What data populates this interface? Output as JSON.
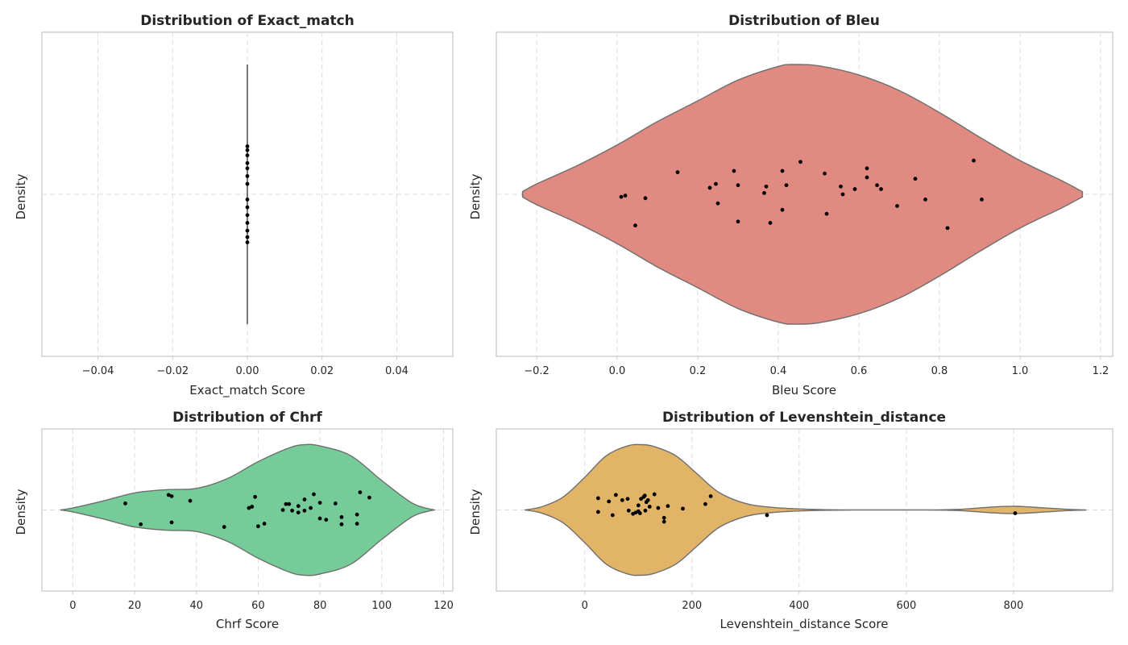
{
  "chart_data": [
    {
      "type": "violin",
      "title": "Distribution of Exact_match",
      "xlabel": "Exact_match Score",
      "ylabel": "Density",
      "xlim": [
        -0.055,
        0.055
      ],
      "xticks": [
        -0.04,
        -0.02,
        0.0,
        0.02,
        0.04
      ],
      "xtick_labels": [
        "−0.04",
        "−0.02",
        "0.00",
        "0.02",
        "0.04"
      ],
      "grid": true,
      "color": "#555555",
      "points": [
        {
          "x": 0.0,
          "jitter": -0.37
        },
        {
          "x": 0.0,
          "jitter": -0.34
        },
        {
          "x": 0.0,
          "jitter": -0.3
        },
        {
          "x": 0.0,
          "jitter": -0.24
        },
        {
          "x": 0.0,
          "jitter": -0.2
        },
        {
          "x": 0.0,
          "jitter": -0.14
        },
        {
          "x": 0.0,
          "jitter": -0.08
        },
        {
          "x": 0.0,
          "jitter": 0.04
        },
        {
          "x": 0.0,
          "jitter": 0.1
        },
        {
          "x": 0.0,
          "jitter": 0.16
        },
        {
          "x": 0.0,
          "jitter": 0.22
        },
        {
          "x": 0.0,
          "jitter": 0.28
        },
        {
          "x": 0.0,
          "jitter": 0.33
        },
        {
          "x": 0.0,
          "jitter": 0.37
        }
      ],
      "violin_profile": [
        [
          0.0,
          1.0
        ]
      ]
    },
    {
      "type": "violin",
      "title": "Distribution of Bleu",
      "xlabel": "Bleu Score",
      "ylabel": "Density",
      "xlim": [
        -0.3,
        1.23
      ],
      "xticks": [
        -0.2,
        0.0,
        0.2,
        0.4,
        0.6,
        0.8,
        1.0,
        1.2
      ],
      "xtick_labels": [
        "−0.2",
        "0.0",
        "0.2",
        "0.4",
        "0.6",
        "0.8",
        "1.0",
        "1.2"
      ],
      "grid": true,
      "color": "#e08a82",
      "violin_profile": [
        [
          -0.235,
          0.02
        ],
        [
          -0.2,
          0.08
        ],
        [
          -0.1,
          0.22
        ],
        [
          0.0,
          0.38
        ],
        [
          0.1,
          0.56
        ],
        [
          0.2,
          0.72
        ],
        [
          0.3,
          0.88
        ],
        [
          0.4,
          0.985
        ],
        [
          0.44,
          1.0
        ],
        [
          0.5,
          0.99
        ],
        [
          0.6,
          0.92
        ],
        [
          0.7,
          0.8
        ],
        [
          0.8,
          0.63
        ],
        [
          0.9,
          0.44
        ],
        [
          1.0,
          0.26
        ],
        [
          1.1,
          0.11
        ],
        [
          1.155,
          0.02
        ]
      ],
      "points": [
        {
          "x": 0.01,
          "jitter": 0.02
        },
        {
          "x": 0.02,
          "jitter": 0.01
        },
        {
          "x": 0.045,
          "jitter": 0.24
        },
        {
          "x": 0.07,
          "jitter": 0.03
        },
        {
          "x": 0.15,
          "jitter": -0.17
        },
        {
          "x": 0.23,
          "jitter": -0.05
        },
        {
          "x": 0.245,
          "jitter": -0.08
        },
        {
          "x": 0.25,
          "jitter": 0.07
        },
        {
          "x": 0.29,
          "jitter": -0.18
        },
        {
          "x": 0.3,
          "jitter": 0.21
        },
        {
          "x": 0.3,
          "jitter": -0.07
        },
        {
          "x": 0.365,
          "jitter": -0.01
        },
        {
          "x": 0.37,
          "jitter": -0.06
        },
        {
          "x": 0.38,
          "jitter": 0.22
        },
        {
          "x": 0.41,
          "jitter": 0.12
        },
        {
          "x": 0.41,
          "jitter": -0.18
        },
        {
          "x": 0.42,
          "jitter": -0.07
        },
        {
          "x": 0.455,
          "jitter": -0.25
        },
        {
          "x": 0.515,
          "jitter": -0.16
        },
        {
          "x": 0.52,
          "jitter": 0.15
        },
        {
          "x": 0.555,
          "jitter": -0.06
        },
        {
          "x": 0.56,
          "jitter": 0.0
        },
        {
          "x": 0.59,
          "jitter": -0.04
        },
        {
          "x": 0.62,
          "jitter": -0.13
        },
        {
          "x": 0.62,
          "jitter": -0.2
        },
        {
          "x": 0.645,
          "jitter": -0.07
        },
        {
          "x": 0.655,
          "jitter": -0.04
        },
        {
          "x": 0.695,
          "jitter": 0.09
        },
        {
          "x": 0.74,
          "jitter": -0.12
        },
        {
          "x": 0.765,
          "jitter": 0.04
        },
        {
          "x": 0.82,
          "jitter": 0.26
        },
        {
          "x": 0.885,
          "jitter": -0.26
        },
        {
          "x": 0.905,
          "jitter": 0.04
        }
      ]
    },
    {
      "type": "violin",
      "title": "Distribution of Chrf",
      "xlabel": "Chrf Score",
      "ylabel": "Density",
      "xlim": [
        -10,
        123
      ],
      "xticks": [
        0,
        20,
        40,
        60,
        80,
        100,
        120
      ],
      "xtick_labels": [
        "0",
        "20",
        "40",
        "60",
        "80",
        "100",
        "120"
      ],
      "grid": true,
      "color": "#76cc98",
      "violin_profile": [
        [
          -4,
          0.0
        ],
        [
          0,
          0.03
        ],
        [
          10,
          0.14
        ],
        [
          20,
          0.26
        ],
        [
          30,
          0.31
        ],
        [
          40,
          0.33
        ],
        [
          50,
          0.48
        ],
        [
          60,
          0.74
        ],
        [
          70,
          0.95
        ],
        [
          75,
          1.0
        ],
        [
          80,
          0.98
        ],
        [
          90,
          0.83
        ],
        [
          100,
          0.45
        ],
        [
          110,
          0.1
        ],
        [
          117,
          0.0
        ]
      ],
      "points": [
        {
          "x": 17,
          "jitter": -0.1
        },
        {
          "x": 22,
          "jitter": 0.22
        },
        {
          "x": 31,
          "jitter": -0.23
        },
        {
          "x": 32,
          "jitter": -0.21
        },
        {
          "x": 32,
          "jitter": 0.19
        },
        {
          "x": 38,
          "jitter": -0.14
        },
        {
          "x": 49,
          "jitter": 0.26
        },
        {
          "x": 57,
          "jitter": -0.03
        },
        {
          "x": 58,
          "jitter": -0.05
        },
        {
          "x": 59,
          "jitter": -0.2
        },
        {
          "x": 60,
          "jitter": 0.25
        },
        {
          "x": 62,
          "jitter": 0.21
        },
        {
          "x": 68,
          "jitter": 0.0
        },
        {
          "x": 69,
          "jitter": -0.09
        },
        {
          "x": 70,
          "jitter": -0.09
        },
        {
          "x": 71,
          "jitter": 0.01
        },
        {
          "x": 73,
          "jitter": 0.04
        },
        {
          "x": 73,
          "jitter": -0.06
        },
        {
          "x": 75,
          "jitter": 0.01
        },
        {
          "x": 75,
          "jitter": -0.16
        },
        {
          "x": 77,
          "jitter": -0.03
        },
        {
          "x": 78,
          "jitter": -0.24
        },
        {
          "x": 80,
          "jitter": 0.13
        },
        {
          "x": 80,
          "jitter": -0.11
        },
        {
          "x": 82,
          "jitter": 0.15
        },
        {
          "x": 85,
          "jitter": -0.1
        },
        {
          "x": 87,
          "jitter": 0.22
        },
        {
          "x": 87,
          "jitter": 0.11
        },
        {
          "x": 92,
          "jitter": 0.21
        },
        {
          "x": 92,
          "jitter": 0.07
        },
        {
          "x": 93,
          "jitter": -0.27
        },
        {
          "x": 96,
          "jitter": -0.19
        }
      ]
    },
    {
      "type": "violin",
      "title": "Distribution of Levenshtein_distance",
      "xlabel": "Levenshtein_distance Score",
      "ylabel": "Density",
      "xlim": [
        -165,
        985
      ],
      "xticks": [
        0,
        200,
        400,
        600,
        800
      ],
      "xtick_labels": [
        "0",
        "200",
        "400",
        "600",
        "800"
      ],
      "grid": true,
      "color": "#e2b468",
      "violin_profile": [
        [
          -112,
          0.0
        ],
        [
          -80,
          0.05
        ],
        [
          -40,
          0.2
        ],
        [
          0,
          0.5
        ],
        [
          40,
          0.83
        ],
        [
          80,
          0.98
        ],
        [
          105,
          1.0
        ],
        [
          130,
          0.97
        ],
        [
          170,
          0.83
        ],
        [
          210,
          0.55
        ],
        [
          250,
          0.27
        ],
        [
          300,
          0.1
        ],
        [
          350,
          0.04
        ],
        [
          420,
          0.01
        ],
        [
          500,
          0.0
        ],
        [
          640,
          0.0
        ],
        [
          700,
          0.01
        ],
        [
          760,
          0.045
        ],
        [
          805,
          0.055
        ],
        [
          860,
          0.03
        ],
        [
          900,
          0.01
        ],
        [
          936,
          0.0
        ]
      ],
      "points": [
        {
          "x": 25,
          "jitter": 0.03
        },
        {
          "x": 25,
          "jitter": -0.18
        },
        {
          "x": 45,
          "jitter": -0.13
        },
        {
          "x": 52,
          "jitter": 0.08
        },
        {
          "x": 58,
          "jitter": -0.23
        },
        {
          "x": 70,
          "jitter": -0.15
        },
        {
          "x": 80,
          "jitter": -0.17
        },
        {
          "x": 82,
          "jitter": 0.01
        },
        {
          "x": 90,
          "jitter": 0.06
        },
        {
          "x": 95,
          "jitter": 0.04
        },
        {
          "x": 100,
          "jitter": 0.02
        },
        {
          "x": 100,
          "jitter": -0.07
        },
        {
          "x": 103,
          "jitter": 0.05
        },
        {
          "x": 105,
          "jitter": -0.17
        },
        {
          "x": 110,
          "jitter": -0.2
        },
        {
          "x": 112,
          "jitter": -0.22
        },
        {
          "x": 113,
          "jitter": 0.01
        },
        {
          "x": 115,
          "jitter": -0.12
        },
        {
          "x": 118,
          "jitter": -0.15
        },
        {
          "x": 121,
          "jitter": -0.05
        },
        {
          "x": 130,
          "jitter": -0.24
        },
        {
          "x": 137,
          "jitter": -0.03
        },
        {
          "x": 148,
          "jitter": 0.12
        },
        {
          "x": 148,
          "jitter": 0.18
        },
        {
          "x": 155,
          "jitter": -0.06
        },
        {
          "x": 183,
          "jitter": -0.02
        },
        {
          "x": 225,
          "jitter": -0.09
        },
        {
          "x": 235,
          "jitter": -0.21
        },
        {
          "x": 340,
          "jitter": 0.08
        },
        {
          "x": 803,
          "jitter": 0.05
        }
      ]
    }
  ]
}
